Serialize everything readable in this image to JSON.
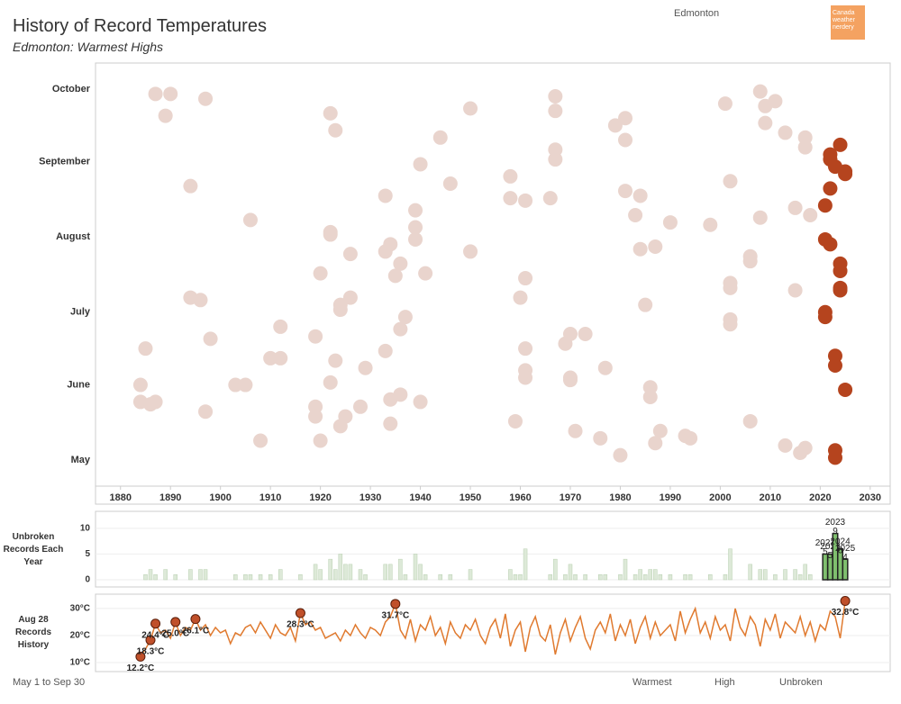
{
  "header": {
    "title": "History of Record Temperatures",
    "subtitle": "Edmonton: Warmest Highs",
    "location": "Edmonton",
    "logo": [
      "Canada",
      "weather",
      "nerdery"
    ]
  },
  "footer": {
    "note": "May 1 to Sep 30",
    "legend": [
      "Warmest",
      "High",
      "Unbroken"
    ]
  },
  "chart_data": [
    {
      "type": "scatter",
      "xlim": [
        1875,
        2034
      ],
      "xticks": [
        1880,
        1890,
        1900,
        1910,
        1920,
        1930,
        1940,
        1950,
        1960,
        1970,
        1980,
        1990,
        2000,
        2010,
        2020,
        2030
      ],
      "ylim": [
        -10,
        163
      ],
      "yticks": [
        {
          "value": 0,
          "label": "May"
        },
        {
          "value": 31,
          "label": "June"
        },
        {
          "value": 61,
          "label": "July"
        },
        {
          "value": 92,
          "label": "August"
        },
        {
          "value": 123,
          "label": "September"
        },
        {
          "value": 153,
          "label": "October"
        }
      ],
      "series": [
        {
          "color": "#e9d4cd",
          "x": [
            1887,
            1890,
            1889,
            1897,
            1894,
            1906,
            1894,
            1896,
            1898,
            1885,
            1884,
            1884,
            1886,
            1887,
            1897,
            1903,
            1905,
            1908,
            1910,
            1912,
            1912,
            1919,
            1919,
            1919,
            1920,
            1920,
            1922,
            1923,
            1922,
            1922,
            1926,
            1924,
            1924,
            1926,
            1923,
            1922,
            1925,
            1924,
            1928,
            1929,
            1933,
            1933,
            1934,
            1936,
            1935,
            1937,
            1936,
            1933,
            1934,
            1936,
            1934,
            1939,
            1939,
            1939,
            1941,
            1940,
            1940,
            1944,
            1946,
            1950,
            1950,
            1958,
            1958,
            1961,
            1961,
            1960,
            1961,
            1961,
            1961,
            1959,
            1967,
            1967,
            1967,
            1967,
            1966,
            1970,
            1969,
            1973,
            1970,
            1970,
            1971,
            1976,
            1977,
            1980,
            1979,
            1981,
            1981,
            1981,
            1984,
            1983,
            1990,
            1984,
            1987,
            1985,
            1986,
            1986,
            1988,
            1987,
            1993,
            1994,
            1998,
            2001,
            2002,
            2006,
            2006,
            2002,
            2002,
            2002,
            2002,
            2006,
            2008,
            2011,
            2009,
            2009,
            2008,
            2013,
            2015,
            2015,
            2017,
            2017,
            2018,
            2013,
            2016,
            2017
          ],
          "y": [
            151,
            151,
            142,
            149,
            113,
            99,
            67,
            66,
            50,
            46,
            31,
            24,
            23,
            24,
            20,
            31,
            31,
            8,
            42,
            42,
            55,
            51,
            22,
            18,
            8,
            77,
            143,
            136,
            94,
            93,
            85,
            64,
            62,
            67,
            41,
            32,
            18,
            14,
            22,
            38,
            109,
            86,
            89,
            81,
            76,
            59,
            54,
            45,
            25,
            27,
            15,
            103,
            96,
            91,
            77,
            24,
            122,
            133,
            114,
            145,
            86,
            117,
            108,
            107,
            75,
            67,
            46,
            37,
            34,
            16,
            150,
            144,
            128,
            124,
            108,
            52,
            48,
            52,
            34,
            33,
            12,
            9,
            38,
            2,
            138,
            141,
            132,
            111,
            109,
            101,
            98,
            87,
            88,
            64,
            30,
            26,
            12,
            7,
            10,
            9,
            97,
            147,
            115,
            84,
            82,
            73,
            71,
            58,
            56,
            16,
            152,
            148,
            146,
            139,
            100,
            135,
            104,
            70,
            133,
            129,
            101,
            6,
            3,
            5
          ]
        },
        {
          "color": "#b5441e",
          "x": [
            2024,
            2022,
            2022,
            2023,
            2025,
            2025,
            2022,
            2021,
            2021,
            2022,
            2024,
            2024,
            2024,
            2024,
            2021,
            2021,
            2023,
            2023,
            2025,
            2023,
            2023
          ],
          "y": [
            130,
            126,
            124,
            121,
            119,
            118,
            112,
            105,
            91,
            89,
            81,
            78,
            71,
            70,
            61,
            59,
            43,
            39,
            29,
            4,
            1
          ]
        }
      ]
    },
    {
      "type": "bar",
      "title": "Unbroken Records Each Year",
      "xlim": [
        1875,
        2034
      ],
      "ylim": [
        -1.4,
        13.3
      ],
      "yticks": [
        0,
        5,
        10
      ],
      "grid": true,
      "series": [
        {
          "color": "#dde9d8",
          "edge": "#b8cfb0",
          "x": [
            1885,
            1886,
            1887,
            1889,
            1891,
            1894,
            1896,
            1897,
            1903,
            1905,
            1906,
            1908,
            1910,
            1912,
            1916,
            1919,
            1920,
            1922,
            1923,
            1924,
            1925,
            1926,
            1928,
            1929,
            1933,
            1934,
            1936,
            1937,
            1939,
            1940,
            1941,
            1944,
            1946,
            1950,
            1958,
            1959,
            1960,
            1961,
            1966,
            1967,
            1969,
            1970,
            1971,
            1973,
            1976,
            1977,
            1980,
            1981,
            1983,
            1984,
            1985,
            1986,
            1987,
            1988,
            1990,
            1993,
            1994,
            1998,
            2001,
            2002,
            2006,
            2008,
            2009,
            2011,
            2013,
            2015,
            2016,
            2017,
            2018
          ],
          "values": [
            1,
            2,
            1,
            2,
            1,
            2,
            2,
            2,
            1,
            1,
            1,
            1,
            1,
            2,
            1,
            3,
            2,
            4,
            2,
            5,
            3,
            3,
            2,
            1,
            3,
            3,
            4,
            1,
            5,
            3,
            1,
            1,
            1,
            2,
            2,
            1,
            1,
            6,
            1,
            4,
            1,
            3,
            1,
            1,
            1,
            1,
            1,
            4,
            1,
            2,
            1,
            2,
            2,
            1,
            1,
            1,
            1,
            1,
            1,
            6,
            3,
            2,
            2,
            1,
            2,
            2,
            1,
            3,
            1
          ]
        },
        {
          "color": "#7fbf6e",
          "edge": "#222",
          "labels": true,
          "x": [
            2021,
            2022,
            2023,
            2024,
            2025
          ],
          "values": [
            5,
            5,
            9,
            6,
            4
          ]
        }
      ]
    },
    {
      "type": "line",
      "title": "Aug 28 Records History",
      "xlim": [
        1875,
        2034
      ],
      "ylim": [
        7,
        35.3
      ],
      "grid": true,
      "yticks": [
        {
          "value": 10,
          "label": "10°C"
        },
        {
          "value": 20,
          "label": "20°C"
        },
        {
          "value": 30,
          "label": "30°C"
        }
      ],
      "series": [
        {
          "color": "#e07a2f",
          "x": [
            1884,
            1885,
            1886,
            1887,
            1888,
            1889,
            1890,
            1891,
            1892,
            1893,
            1894,
            1895,
            1896,
            1897,
            1898,
            1899,
            1900,
            1901,
            1902,
            1903,
            1904,
            1905,
            1906,
            1907,
            1908,
            1909,
            1910,
            1911,
            1912,
            1913,
            1914,
            1915,
            1916,
            1917,
            1918,
            1919,
            1920,
            1921,
            1922,
            1923,
            1924,
            1925,
            1926,
            1927,
            1928,
            1929,
            1930,
            1931,
            1932,
            1933,
            1934,
            1935,
            1936,
            1937,
            1938,
            1939,
            1940,
            1941,
            1942,
            1943,
            1944,
            1945,
            1946,
            1947,
            1948,
            1949,
            1950,
            1951,
            1952,
            1953,
            1954,
            1955,
            1956,
            1957,
            1958,
            1959,
            1960,
            1961,
            1962,
            1963,
            1964,
            1965,
            1966,
            1967,
            1968,
            1969,
            1970,
            1971,
            1972,
            1973,
            1974,
            1975,
            1976,
            1977,
            1978,
            1979,
            1980,
            1981,
            1982,
            1983,
            1984,
            1985,
            1986,
            1987,
            1988,
            1989,
            1990,
            1991,
            1992,
            1993,
            1994,
            1995,
            1996,
            1997,
            1998,
            1999,
            2000,
            2001,
            2002,
            2003,
            2004,
            2005,
            2006,
            2007,
            2008,
            2009,
            2010,
            2011,
            2012,
            2013,
            2014,
            2015,
            2016,
            2017,
            2018,
            2019,
            2020,
            2021,
            2022,
            2023,
            2024,
            2025
          ],
          "values": [
            12.2,
            15,
            18.3,
            24.4,
            21,
            22,
            19,
            25.0,
            20,
            23,
            22,
            26.1,
            22,
            24,
            20,
            23,
            21,
            22,
            17,
            21,
            20,
            23,
            24,
            21,
            25,
            22,
            19,
            24,
            21,
            20,
            23,
            18,
            28.3,
            24,
            25,
            22,
            23,
            19,
            20,
            21,
            18,
            22,
            20,
            24,
            21,
            19,
            23,
            22,
            20,
            25,
            27,
            31.7,
            22,
            19,
            26,
            18,
            24,
            22,
            27,
            20,
            23,
            17,
            25,
            21,
            19,
            24,
            22,
            26,
            20,
            17,
            23,
            26,
            19,
            28,
            16,
            22,
            25,
            14,
            23,
            27,
            20,
            18,
            24,
            13,
            21,
            26,
            18,
            23,
            27,
            19,
            15,
            22,
            25,
            21,
            28,
            18,
            24,
            20,
            26,
            17,
            23,
            27,
            19,
            25,
            20,
            22,
            24,
            18,
            29,
            21,
            26,
            30,
            21,
            25,
            19,
            27,
            22,
            24,
            18,
            30,
            23,
            20,
            27,
            24,
            16,
            26,
            22,
            28,
            19,
            25,
            23,
            21,
            27,
            20,
            25,
            18,
            24,
            22,
            29,
            27,
            19,
            32.8
          ]
        },
        {
          "color": "#c0502a",
          "markers": true,
          "x": [
            1884,
            1886,
            1887,
            1891,
            1895,
            1916,
            1935,
            2025
          ],
          "values": [
            12.2,
            18.3,
            24.4,
            25.0,
            26.1,
            28.3,
            31.7,
            32.8
          ],
          "value_labels": [
            "12.2°C",
            "18.3°C",
            "24.4°C",
            "25.0°C",
            "26.1°C",
            "28.3°C",
            "31.7°C",
            "32.8°C"
          ]
        }
      ]
    }
  ]
}
